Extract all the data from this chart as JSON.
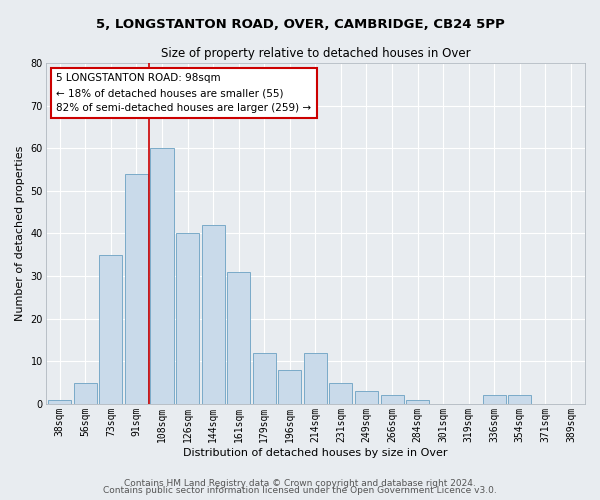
{
  "title_line1": "5, LONGSTANTON ROAD, OVER, CAMBRIDGE, CB24 5PP",
  "title_line2": "Size of property relative to detached houses in Over",
  "xlabel": "Distribution of detached houses by size in Over",
  "ylabel": "Number of detached properties",
  "categories": [
    "38sqm",
    "56sqm",
    "73sqm",
    "91sqm",
    "108sqm",
    "126sqm",
    "144sqm",
    "161sqm",
    "179sqm",
    "196sqm",
    "214sqm",
    "231sqm",
    "249sqm",
    "266sqm",
    "284sqm",
    "301sqm",
    "319sqm",
    "336sqm",
    "354sqm",
    "371sqm",
    "389sqm"
  ],
  "values": [
    1,
    5,
    35,
    54,
    60,
    40,
    42,
    31,
    12,
    8,
    12,
    5,
    3,
    2,
    1,
    0,
    0,
    2,
    2,
    0,
    0
  ],
  "bar_color": "#c9daea",
  "bar_edge_color": "#7aaac8",
  "marker_label_line1": "5 LONGSTANTON ROAD: 98sqm",
  "marker_label_line2": "← 18% of detached houses are smaller (55)",
  "marker_label_line3": "82% of semi-detached houses are larger (259) →",
  "annotation_box_color": "#ffffff",
  "annotation_border_color": "#cc0000",
  "vline_color": "#cc0000",
  "vline_x": 3.5,
  "ylim": [
    0,
    80
  ],
  "yticks": [
    0,
    10,
    20,
    30,
    40,
    50,
    60,
    70,
    80
  ],
  "bg_color": "#e8ecf0",
  "plot_bg_color": "#e8ecf0",
  "footer_line1": "Contains HM Land Registry data © Crown copyright and database right 2024.",
  "footer_line2": "Contains public sector information licensed under the Open Government Licence v3.0.",
  "title_fontsize": 9.5,
  "subtitle_fontsize": 8.5,
  "axis_label_fontsize": 8,
  "tick_fontsize": 7,
  "annotation_fontsize": 7.5,
  "footer_fontsize": 6.5
}
